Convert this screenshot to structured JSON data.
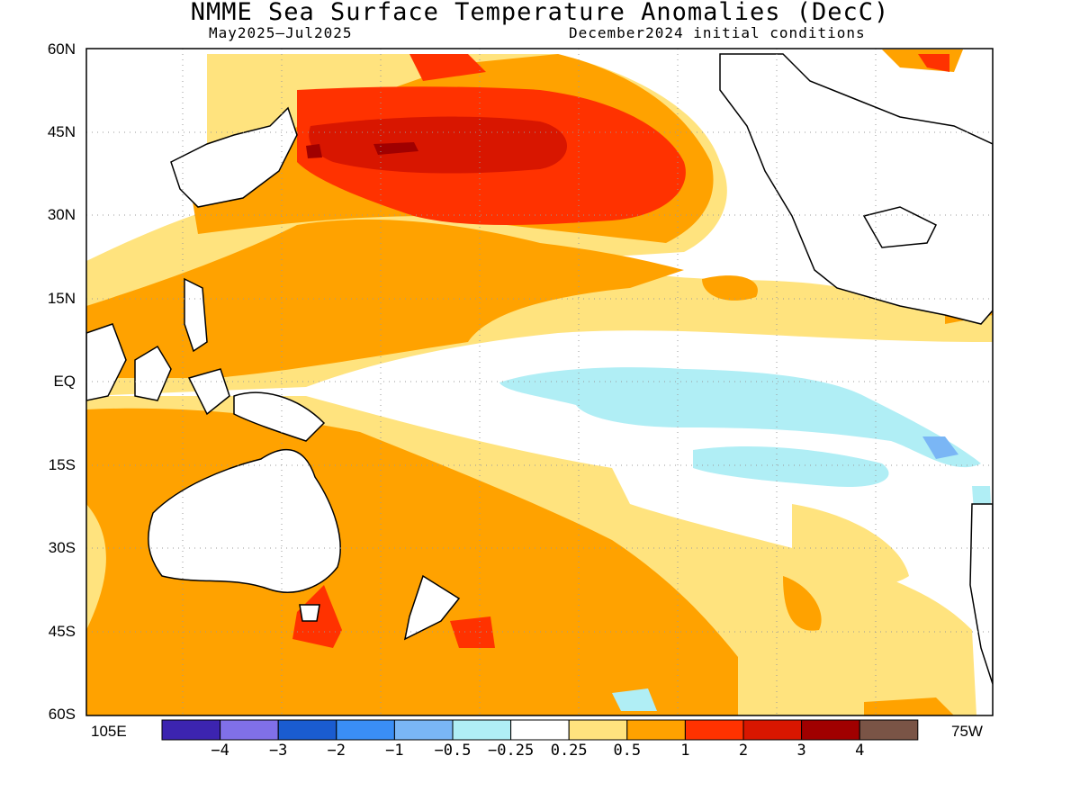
{
  "title": "NMME Sea Surface Temperature Anomalies (DecC)",
  "period": "May2025–Jul2025",
  "init": "December2024 initial conditions",
  "lat_labels": [
    "60N",
    "45N",
    "30N",
    "15N",
    "EQ",
    "15S",
    "30S",
    "45S",
    "60S"
  ],
  "lon_labels": {
    "left": "105E",
    "right": "75W"
  },
  "colorbar": {
    "colors": [
      "#3c24b0",
      "#8070e8",
      "#1a5cd0",
      "#3a8ef5",
      "#7ab6f5",
      "#b0eef5",
      "#ffffff",
      "#ffe37e",
      "#ffa200",
      "#ff3200",
      "#d81600",
      "#a00000",
      "#7a5446"
    ],
    "labels": [
      "−4",
      "−3",
      "−2",
      "−1",
      "−0.5",
      "−0.25",
      "0.25",
      "0.5",
      "1",
      "2",
      "3",
      "4"
    ]
  },
  "map_colors": {
    "land_outline": "#000000",
    "grid": "#9a9a9a"
  }
}
